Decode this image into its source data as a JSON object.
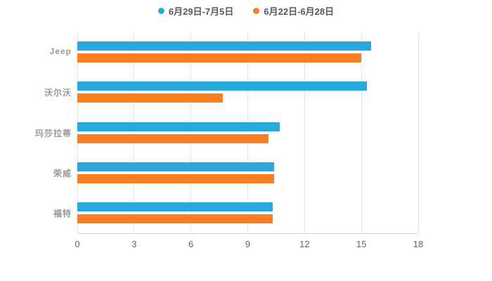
{
  "chart_data": {
    "type": "bar",
    "orientation": "horizontal",
    "title": "",
    "xlabel": "",
    "ylabel": "",
    "categories": [
      "Jeep",
      "沃尔沃",
      "玛莎拉蒂",
      "荣威",
      "福特"
    ],
    "series": [
      {
        "name": "6月29日-7月5日",
        "color": "#29a8de",
        "values": [
          15.5,
          15.3,
          10.7,
          10.4,
          10.3
        ]
      },
      {
        "name": "6月22日-6月28日",
        "color": "#fb7e23",
        "values": [
          15.0,
          7.7,
          10.1,
          10.4,
          10.3
        ]
      }
    ],
    "xlim": [
      0,
      18
    ],
    "xticks": [
      0,
      3,
      6,
      9,
      12,
      15,
      18
    ],
    "grid": true,
    "legend_position": "top-center"
  },
  "colors": {
    "gridline": "#e6e6e6",
    "axis_line": "#d9d9d9",
    "tick_label": "#666666",
    "category_label": "#999999",
    "legend_label": "#595959",
    "background": "#ffffff"
  }
}
